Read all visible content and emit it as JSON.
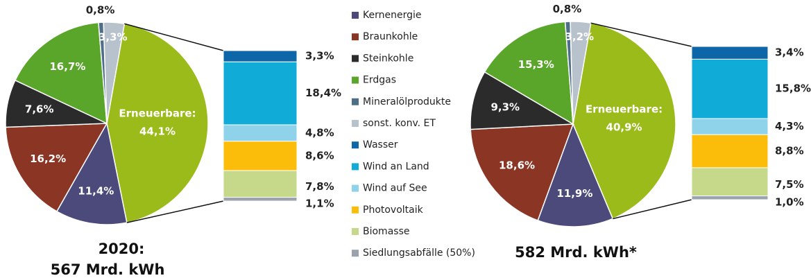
{
  "legend": [
    {
      "name": "Kernenergie",
      "color": "#4b4a7a"
    },
    {
      "name": "Braunkohle",
      "color": "#8b3524"
    },
    {
      "name": "Steinkohle",
      "color": "#2b2b2b"
    },
    {
      "name": "Erdgas",
      "color": "#5aa62a"
    },
    {
      "name": "Mineralölprodukte",
      "color": "#4f6f88"
    },
    {
      "name": "sonst. konv. ET",
      "color": "#b8c2cc"
    },
    {
      "name": "Wasser",
      "color": "#0d66a8"
    },
    {
      "name": "Wind an Land",
      "color": "#10acd7"
    },
    {
      "name": "Wind auf See",
      "color": "#8fd3ea"
    },
    {
      "name": "Photovoltaik",
      "color": "#fbbd0a"
    },
    {
      "name": "Biomasse",
      "color": "#c6d98a"
    },
    {
      "name": "Siedlungsabfälle (50%)",
      "color": "#9aa3ab"
    }
  ],
  "chart_data": [
    {
      "type": "pie",
      "title": "2020:",
      "subtitle": "567 Mrd. kWh",
      "center_label": "Erneuerbare:",
      "center_color": "#9bbb1a",
      "values": [
        11.4,
        16.2,
        7.6,
        16.7,
        0.8,
        3.3,
        44.1
      ],
      "value_labels": [
        "11,4%",
        "16,2%",
        "7,6%",
        "16,7%",
        "0,8%",
        "3,3%",
        "44,1%"
      ],
      "bar_values": [
        3.3,
        18.4,
        4.8,
        8.6,
        7.8,
        1.1
      ],
      "bar_value_labels": [
        "3,3%",
        "18,4%",
        "4,8%",
        "8,6%",
        "7,8%",
        "1,1%"
      ]
    },
    {
      "type": "pie",
      "title": "582 Mrd. kWh*",
      "center_label": "Erneuerbare:",
      "center_color": "#9bbb1a",
      "values": [
        11.9,
        18.6,
        9.3,
        15.3,
        0.8,
        3.2,
        40.9
      ],
      "value_labels": [
        "11,9%",
        "18,6%",
        "9,3%",
        "15,3%",
        "0,8%",
        "3,2%",
        "40,9%"
      ],
      "bar_values": [
        3.4,
        15.8,
        4.3,
        8.8,
        7.5,
        1.0
      ],
      "bar_value_labels": [
        "3,4%",
        "15,8%",
        "4,3%",
        "8,8%",
        "7,5%",
        "1,0%"
      ]
    }
  ]
}
